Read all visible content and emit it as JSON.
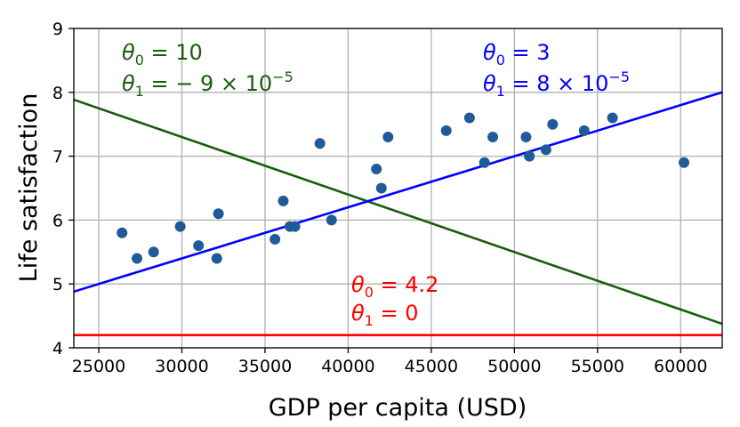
{
  "chart_data": {
    "type": "scatter",
    "xlabel": "GDP per capita (USD)",
    "ylabel": "Life satisfaction",
    "xlim": [
      23500,
      62500
    ],
    "ylim": [
      4,
      9
    ],
    "x_ticks": [
      25000,
      30000,
      35000,
      40000,
      45000,
      50000,
      55000,
      60000
    ],
    "y_ticks": [
      4,
      5,
      6,
      7,
      8,
      9
    ],
    "x_tick_labels": [
      "25000",
      "30000",
      "35000",
      "40000",
      "45000",
      "50000",
      "55000",
      "60000"
    ],
    "y_tick_labels": [
      "4",
      "5",
      "6",
      "7",
      "8",
      "9"
    ],
    "grid": true,
    "points": {
      "color": "#1f5a99",
      "x": [
        26400,
        27300,
        28300,
        29900,
        31000,
        32100,
        32200,
        35600,
        36100,
        36500,
        36800,
        38300,
        39000,
        41700,
        42000,
        42400,
        45900,
        47300,
        48200,
        48700,
        50700,
        50900,
        51900,
        52300,
        54200,
        55900,
        60200
      ],
      "y": [
        5.8,
        5.4,
        5.5,
        5.9,
        5.6,
        5.4,
        6.1,
        5.7,
        6.3,
        5.9,
        5.9,
        7.2,
        6.0,
        6.8,
        6.5,
        7.3,
        7.4,
        7.6,
        6.9,
        7.3,
        7.3,
        7.0,
        7.1,
        7.5,
        7.4,
        7.6,
        6.9
      ]
    },
    "lines": [
      {
        "theta0": 10,
        "theta1": -9e-05,
        "color": "#1a5c0e",
        "annotation": {
          "theta0_label": "θ",
          "theta0_sub": "0",
          "theta0_rest": " = 10",
          "theta1_label": "θ",
          "theta1_sub": "1",
          "theta1_rest": " = − 9 × 10",
          "theta1_exp": "−5"
        }
      },
      {
        "theta0": 3,
        "theta1": 8e-05,
        "color": "#0000ff",
        "annotation": {
          "theta0_label": "θ",
          "theta0_sub": "0",
          "theta0_rest": " = 3",
          "theta1_label": "θ",
          "theta1_sub": "1",
          "theta1_rest": " = 8 × 10",
          "theta1_exp": "−5"
        }
      },
      {
        "theta0": 4.2,
        "theta1": 0,
        "color": "#ff0000",
        "annotation": {
          "theta0_label": "θ",
          "theta0_sub": "0",
          "theta0_rest": " = 4.2",
          "theta1_label": "θ",
          "theta1_sub": "1",
          "theta1_rest": " = 0",
          "theta1_exp": ""
        }
      }
    ]
  }
}
